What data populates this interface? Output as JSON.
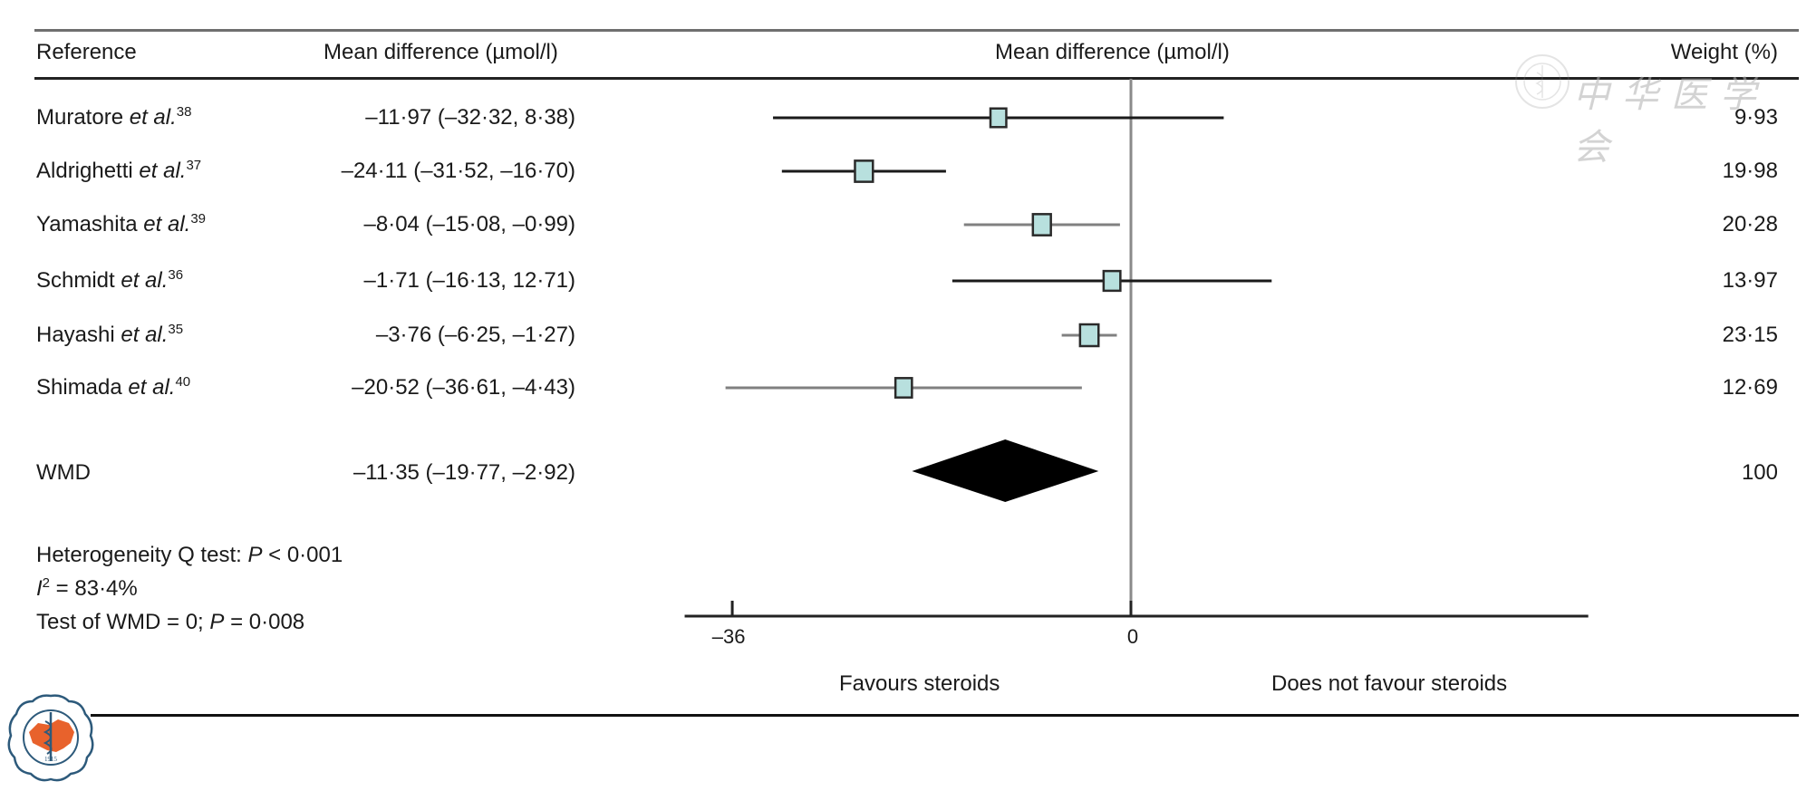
{
  "header": {
    "reference": "Reference",
    "mean_difference_col": "Mean difference (µmol/l)",
    "plot_title": "Mean difference (µmol/l)",
    "weight": "Weight (%)"
  },
  "studies": [
    {
      "author": "Muratore",
      "etal": "et al.",
      "ref": "38",
      "md_text": "–11·97 (–32·32, 8·38)",
      "weight": "9·93"
    },
    {
      "author": "Aldrighetti",
      "etal": "et al.",
      "ref": "37",
      "md_text": "–24·11 (–31·52, –16·70)",
      "weight": "19·98"
    },
    {
      "author": "Yamashita",
      "etal": "et al.",
      "ref": "39",
      "md_text": "–8·04 (–15·08, –0·99)",
      "weight": "20·28"
    },
    {
      "author": "Schmidt",
      "etal": "et al.",
      "ref": "36",
      "md_text": "–1·71 (–16·13, 12·71)",
      "weight": "13·97"
    },
    {
      "author": "Hayashi",
      "etal": "et al.",
      "ref": "35",
      "md_text": "–3·76 (–6·25, –1·27)",
      "weight": "23·15"
    },
    {
      "author": "Shimada",
      "etal": "et al.",
      "ref": "40",
      "md_text": "–20·52 (–36·61, –4·43)",
      "weight": "12·69"
    }
  ],
  "pooled": {
    "label": "WMD",
    "md_text": "–11·35 (–19·77, –2·92)",
    "weight": "100"
  },
  "stats": {
    "heterogeneity_prefix": "Heterogeneity Q test: ",
    "heterogeneity_p_label": "P",
    "heterogeneity_p_value": " < 0·001",
    "i2_label": "I",
    "i2_sup": "2",
    "i2_value": " = 83·4%",
    "test_prefix": "Test of WMD = 0; ",
    "test_p_label": "P",
    "test_p_value": " = 0·008"
  },
  "watermark": {
    "text": "中华医学会"
  },
  "logo": {
    "year": "1915",
    "caption": "CHINESE MEDICAL ASSOCIATION",
    "chinese": "中华医学会"
  },
  "colors": {
    "box_fill": "#b8e0de",
    "box_stroke": "#2a2a2a",
    "ci_black": "#1a1a1a",
    "ci_gray": "#808080",
    "diamond": "#000000",
    "zero_line": "#8a8a8a",
    "logo_orange": "#e8622c",
    "logo_blue": "#2d5a7b"
  },
  "chart_data": {
    "type": "forest",
    "title": "Mean difference (µmol/l)",
    "xlabel": "",
    "x_range": [
      -40.3,
      41.3
    ],
    "xticks": [
      -36,
      0
    ],
    "xtick_labels": [
      "–36",
      "0"
    ],
    "reference_line": 0,
    "left_label": "Favours steroids",
    "right_label": "Does not favour steroids",
    "studies": [
      {
        "name": "Muratore et al.",
        "mean": -11.97,
        "lower": -32.32,
        "upper": 8.38,
        "weight": 9.93,
        "ci_color": "black"
      },
      {
        "name": "Aldrighetti et al.",
        "mean": -24.11,
        "lower": -31.52,
        "upper": -16.7,
        "weight": 19.98,
        "ci_color": "black"
      },
      {
        "name": "Yamashita et al.",
        "mean": -8.04,
        "lower": -15.08,
        "upper": -0.99,
        "weight": 20.28,
        "ci_color": "gray"
      },
      {
        "name": "Schmidt et al.",
        "mean": -1.71,
        "lower": -16.13,
        "upper": 12.71,
        "weight": 13.97,
        "ci_color": "black"
      },
      {
        "name": "Hayashi et al.",
        "mean": -3.76,
        "lower": -6.25,
        "upper": -1.27,
        "weight": 23.15,
        "ci_color": "gray"
      },
      {
        "name": "Shimada et al.",
        "mean": -20.52,
        "lower": -36.61,
        "upper": -4.43,
        "weight": 12.69,
        "ci_color": "gray"
      }
    ],
    "pooled": {
      "name": "WMD",
      "mean": -11.35,
      "lower": -19.77,
      "upper": -2.92,
      "weight": 100
    }
  }
}
